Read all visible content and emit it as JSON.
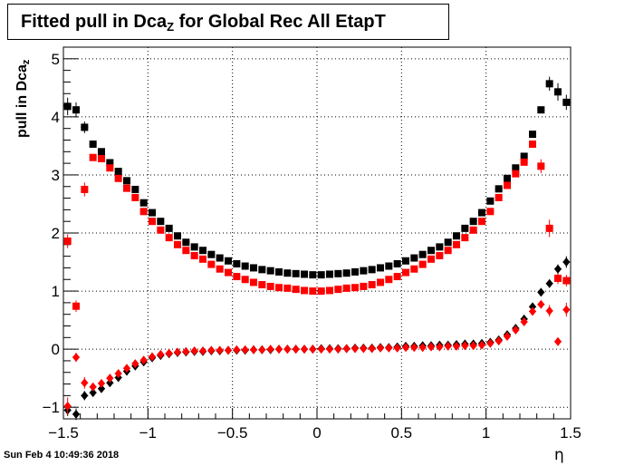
{
  "title": {
    "main": "Fitted pull in Dca",
    "sub": "Z",
    "rest": " for Global Rec All EtapT"
  },
  "timestamp": "Sun Feb  4 10:49:36 2018",
  "chart_data": {
    "type": "scatter",
    "title": "Fitted pull in Dca_Z for Global Rec All EtapT",
    "xlabel": "η",
    "ylabel": "pull in Dca_z",
    "ylabel_main": "pull in Dca",
    "ylabel_sub": "z",
    "xlim": [
      -1.5,
      1.5
    ],
    "ylim": [
      -1.2,
      5.2
    ],
    "x_ticks": [
      -1.5,
      -1,
      -0.5,
      0,
      0.5,
      1,
      1.5
    ],
    "x_tick_labels": [
      "−1.5",
      "−1",
      "−0.5",
      "0",
      "0.5",
      "1",
      "1.5"
    ],
    "y_ticks": [
      -1,
      0,
      1,
      2,
      3,
      4,
      5
    ],
    "y_tick_labels": [
      "−1",
      "0",
      "1",
      "2",
      "3",
      "4",
      "5"
    ],
    "grid": true,
    "series": [
      {
        "marker": "square",
        "color": "#000000",
        "x": [
          -1.475,
          -1.425,
          -1.375,
          -1.325,
          -1.275,
          -1.225,
          -1.175,
          -1.125,
          -1.075,
          -1.025,
          -0.975,
          -0.925,
          -0.875,
          -0.825,
          -0.775,
          -0.725,
          -0.675,
          -0.625,
          -0.575,
          -0.525,
          -0.475,
          -0.425,
          -0.375,
          -0.325,
          -0.275,
          -0.225,
          -0.175,
          -0.125,
          -0.075,
          -0.025,
          0.025,
          0.075,
          0.125,
          0.175,
          0.225,
          0.275,
          0.325,
          0.375,
          0.425,
          0.475,
          0.525,
          0.575,
          0.625,
          0.675,
          0.725,
          0.775,
          0.825,
          0.875,
          0.925,
          0.975,
          1.025,
          1.075,
          1.125,
          1.175,
          1.225,
          1.275,
          1.325,
          1.375,
          1.425,
          1.475
        ],
        "y": [
          4.18,
          4.12,
          3.82,
          3.53,
          3.4,
          3.21,
          3.06,
          2.9,
          2.75,
          2.52,
          2.35,
          2.2,
          2.08,
          1.95,
          1.84,
          1.76,
          1.7,
          1.63,
          1.57,
          1.52,
          1.47,
          1.43,
          1.4,
          1.37,
          1.35,
          1.33,
          1.31,
          1.3,
          1.29,
          1.28,
          1.28,
          1.29,
          1.3,
          1.31,
          1.33,
          1.35,
          1.37,
          1.4,
          1.43,
          1.47,
          1.52,
          1.57,
          1.63,
          1.7,
          1.76,
          1.84,
          1.95,
          2.08,
          2.2,
          2.35,
          2.55,
          2.76,
          2.94,
          3.12,
          3.32,
          3.7,
          4.12,
          4.57,
          4.43,
          4.25
        ],
        "yerr": [
          0.15,
          0.13,
          0.1,
          0.05,
          0.04,
          0.04,
          0.03,
          0.03,
          0.03,
          0.03,
          0.03,
          0.02,
          0.02,
          0.02,
          0.02,
          0.02,
          0.02,
          0.02,
          0.02,
          0.02,
          0.02,
          0.02,
          0.02,
          0.02,
          0.02,
          0.02,
          0.02,
          0.02,
          0.02,
          0.02,
          0.02,
          0.02,
          0.02,
          0.02,
          0.02,
          0.02,
          0.02,
          0.02,
          0.02,
          0.02,
          0.02,
          0.02,
          0.02,
          0.02,
          0.02,
          0.02,
          0.02,
          0.02,
          0.02,
          0.03,
          0.03,
          0.03,
          0.03,
          0.03,
          0.04,
          0.04,
          0.05,
          0.12,
          0.15,
          0.13
        ]
      },
      {
        "marker": "square",
        "color": "#ff0000",
        "x": [
          -1.475,
          -1.425,
          -1.375,
          -1.325,
          -1.275,
          -1.225,
          -1.175,
          -1.125,
          -1.075,
          -1.025,
          -0.975,
          -0.925,
          -0.875,
          -0.825,
          -0.775,
          -0.725,
          -0.675,
          -0.625,
          -0.575,
          -0.525,
          -0.475,
          -0.425,
          -0.375,
          -0.325,
          -0.275,
          -0.225,
          -0.175,
          -0.125,
          -0.075,
          -0.025,
          0.025,
          0.075,
          0.125,
          0.175,
          0.225,
          0.275,
          0.325,
          0.375,
          0.425,
          0.475,
          0.525,
          0.575,
          0.625,
          0.675,
          0.725,
          0.775,
          0.825,
          0.875,
          0.925,
          0.975,
          1.025,
          1.075,
          1.125,
          1.175,
          1.225,
          1.275,
          1.325,
          1.375,
          1.425,
          1.475
        ],
        "y": [
          1.86,
          0.74,
          2.75,
          3.3,
          3.28,
          3.12,
          2.94,
          2.77,
          2.61,
          2.37,
          2.2,
          2.05,
          1.92,
          1.8,
          1.7,
          1.61,
          1.55,
          1.46,
          1.38,
          1.32,
          1.25,
          1.2,
          1.15,
          1.11,
          1.08,
          1.06,
          1.05,
          1.03,
          1.01,
          1.0,
          1.0,
          1.01,
          1.03,
          1.05,
          1.06,
          1.08,
          1.11,
          1.15,
          1.2,
          1.25,
          1.32,
          1.38,
          1.46,
          1.55,
          1.61,
          1.7,
          1.8,
          1.92,
          2.05,
          2.2,
          2.37,
          2.61,
          2.82,
          3.02,
          3.22,
          3.53,
          3.15,
          2.08,
          1.22,
          1.18
        ],
        "yerr": [
          0.12,
          0.1,
          0.12,
          0.06,
          0.04,
          0.04,
          0.03,
          0.03,
          0.03,
          0.03,
          0.03,
          0.02,
          0.02,
          0.02,
          0.02,
          0.02,
          0.02,
          0.02,
          0.02,
          0.02,
          0.02,
          0.02,
          0.02,
          0.02,
          0.02,
          0.02,
          0.02,
          0.02,
          0.02,
          0.02,
          0.02,
          0.02,
          0.02,
          0.02,
          0.02,
          0.02,
          0.02,
          0.02,
          0.02,
          0.02,
          0.02,
          0.02,
          0.02,
          0.02,
          0.02,
          0.02,
          0.02,
          0.02,
          0.02,
          0.03,
          0.03,
          0.03,
          0.03,
          0.03,
          0.04,
          0.06,
          0.12,
          0.15,
          0.1,
          0.1
        ]
      },
      {
        "marker": "diamond",
        "color": "#000000",
        "x": [
          -1.475,
          -1.425,
          -1.375,
          -1.325,
          -1.275,
          -1.225,
          -1.175,
          -1.125,
          -1.075,
          -1.025,
          -0.975,
          -0.925,
          -0.875,
          -0.825,
          -0.775,
          -0.725,
          -0.675,
          -0.625,
          -0.575,
          -0.525,
          -0.475,
          -0.425,
          -0.375,
          -0.325,
          -0.275,
          -0.225,
          -0.175,
          -0.125,
          -0.075,
          -0.025,
          0.025,
          0.075,
          0.125,
          0.175,
          0.225,
          0.275,
          0.325,
          0.375,
          0.425,
          0.475,
          0.525,
          0.575,
          0.625,
          0.675,
          0.725,
          0.775,
          0.825,
          0.875,
          0.925,
          0.975,
          1.025,
          1.075,
          1.125,
          1.175,
          1.225,
          1.275,
          1.325,
          1.375,
          1.425,
          1.475
        ],
        "y": [
          -1.05,
          -1.12,
          -0.8,
          -0.75,
          -0.68,
          -0.58,
          -0.49,
          -0.38,
          -0.29,
          -0.22,
          -0.15,
          -0.11,
          -0.08,
          -0.06,
          -0.05,
          -0.04,
          -0.04,
          -0.03,
          -0.03,
          -0.02,
          -0.02,
          -0.02,
          -0.01,
          -0.01,
          -0.01,
          0.0,
          0.0,
          0.0,
          0.0,
          0.0,
          0.01,
          0.01,
          0.01,
          0.01,
          0.02,
          0.02,
          0.02,
          0.03,
          0.03,
          0.04,
          0.05,
          0.05,
          0.06,
          0.06,
          0.07,
          0.07,
          0.08,
          0.09,
          0.09,
          0.1,
          0.12,
          0.16,
          0.25,
          0.36,
          0.52,
          0.73,
          0.98,
          1.13,
          1.38,
          1.5
        ],
        "yerr": [
          0.1,
          0.1,
          0.08,
          0.04,
          0.03,
          0.03,
          0.03,
          0.02,
          0.02,
          0.02,
          0.02,
          0.02,
          0.02,
          0.02,
          0.02,
          0.02,
          0.02,
          0.02,
          0.02,
          0.02,
          0.02,
          0.02,
          0.02,
          0.02,
          0.02,
          0.02,
          0.02,
          0.02,
          0.02,
          0.02,
          0.02,
          0.02,
          0.02,
          0.02,
          0.02,
          0.02,
          0.02,
          0.02,
          0.02,
          0.02,
          0.02,
          0.02,
          0.02,
          0.02,
          0.02,
          0.02,
          0.02,
          0.02,
          0.02,
          0.02,
          0.02,
          0.02,
          0.03,
          0.03,
          0.03,
          0.04,
          0.05,
          0.06,
          0.08,
          0.1
        ]
      },
      {
        "marker": "diamond",
        "color": "#ff0000",
        "x": [
          -1.475,
          -1.425,
          -1.375,
          -1.325,
          -1.275,
          -1.225,
          -1.175,
          -1.125,
          -1.075,
          -1.025,
          -0.975,
          -0.925,
          -0.875,
          -0.825,
          -0.775,
          -0.725,
          -0.675,
          -0.625,
          -0.575,
          -0.525,
          -0.475,
          -0.425,
          -0.375,
          -0.325,
          -0.275,
          -0.225,
          -0.175,
          -0.125,
          -0.075,
          -0.025,
          0.025,
          0.075,
          0.125,
          0.175,
          0.225,
          0.275,
          0.325,
          0.375,
          0.425,
          0.475,
          0.525,
          0.575,
          0.625,
          0.675,
          0.725,
          0.775,
          0.825,
          0.875,
          0.925,
          0.975,
          1.025,
          1.075,
          1.125,
          1.175,
          1.225,
          1.275,
          1.325,
          1.375,
          1.425,
          1.475
        ],
        "y": [
          -0.98,
          -0.14,
          -0.58,
          -0.65,
          -0.59,
          -0.5,
          -0.42,
          -0.33,
          -0.25,
          -0.19,
          -0.13,
          -0.09,
          -0.07,
          -0.05,
          -0.04,
          -0.03,
          -0.03,
          -0.02,
          -0.02,
          -0.02,
          -0.01,
          -0.01,
          -0.01,
          -0.01,
          0.0,
          0.0,
          0.0,
          0.0,
          0.0,
          0.0,
          0.0,
          0.0,
          0.0,
          0.01,
          0.01,
          0.01,
          0.01,
          0.02,
          0.02,
          0.02,
          0.03,
          0.03,
          0.03,
          0.04,
          0.04,
          0.05,
          0.05,
          0.06,
          0.06,
          0.07,
          0.1,
          0.14,
          0.22,
          0.33,
          0.47,
          0.65,
          0.77,
          0.66,
          0.13,
          0.68
        ],
        "yerr": [
          0.15,
          0.08,
          0.1,
          0.05,
          0.03,
          0.03,
          0.03,
          0.02,
          0.02,
          0.02,
          0.02,
          0.02,
          0.02,
          0.02,
          0.02,
          0.02,
          0.02,
          0.02,
          0.02,
          0.02,
          0.02,
          0.02,
          0.02,
          0.02,
          0.02,
          0.02,
          0.02,
          0.02,
          0.02,
          0.02,
          0.02,
          0.02,
          0.02,
          0.02,
          0.02,
          0.02,
          0.02,
          0.02,
          0.02,
          0.02,
          0.02,
          0.02,
          0.02,
          0.02,
          0.02,
          0.02,
          0.02,
          0.02,
          0.02,
          0.02,
          0.02,
          0.02,
          0.03,
          0.03,
          0.03,
          0.04,
          0.05,
          0.1,
          0.06,
          0.12
        ]
      }
    ]
  }
}
